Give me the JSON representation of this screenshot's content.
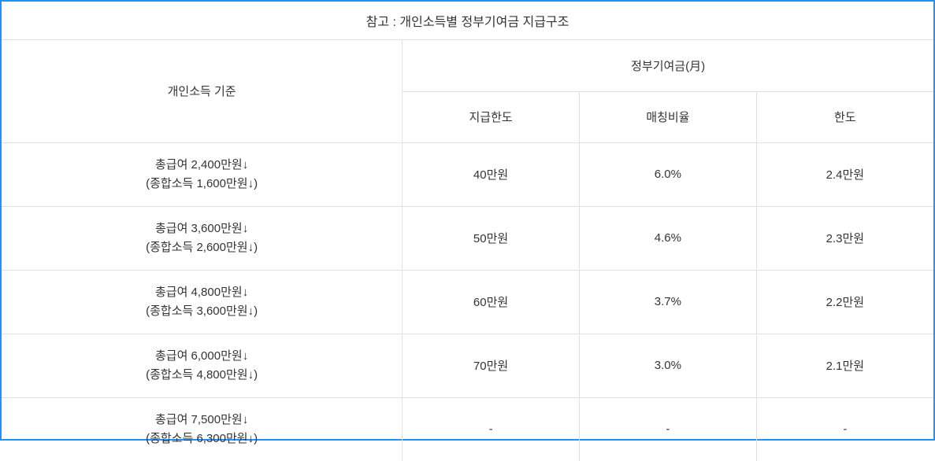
{
  "title": "참고 : 개인소득별 정부기여금 지급구조",
  "headers": {
    "income": "개인소득 기준",
    "contribution_group": "정부기여금(月)",
    "sub": {
      "limit": "지급한도",
      "matching": "매칭비율",
      "cap": "한도"
    }
  },
  "rows": [
    {
      "income_line1": "총급여 2,400만원↓",
      "income_line2": "(종합소득 1,600만원↓)",
      "limit": "40만원",
      "matching": "6.0%",
      "cap": "2.4만원"
    },
    {
      "income_line1": "총급여 3,600만원↓",
      "income_line2": "(종합소득 2,600만원↓)",
      "limit": "50만원",
      "matching": "4.6%",
      "cap": "2.3만원"
    },
    {
      "income_line1": "총급여 4,800만원↓",
      "income_line2": "(종합소득 3,600만원↓)",
      "limit": "60만원",
      "matching": "3.7%",
      "cap": "2.2만원"
    },
    {
      "income_line1": "총급여 6,000만원↓",
      "income_line2": "(종합소득 4,800만원↓)",
      "limit": "70만원",
      "matching": "3.0%",
      "cap": "2.1만원"
    },
    {
      "income_line1": "총급여 7,500만원↓",
      "income_line2": "(종합소득 6,300만원↓)",
      "limit": "-",
      "matching": "-",
      "cap": "-"
    }
  ],
  "styling": {
    "border_color": "#1e90ff",
    "grid_color": "#e0e0e0",
    "text_color": "#333333",
    "background_color": "#ffffff",
    "title_fontsize": 16,
    "cell_fontsize": 15
  }
}
